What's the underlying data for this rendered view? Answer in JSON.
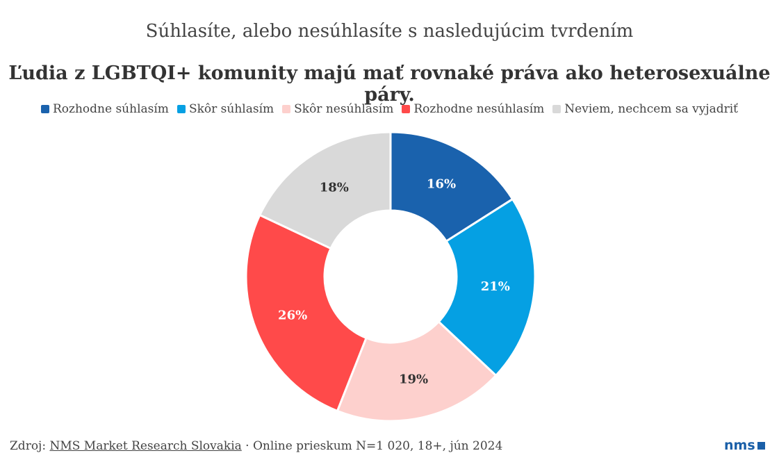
{
  "chart_data": {
    "type": "pie",
    "subtitle": "Súhlasíte, alebo nesúhlasíte s nasledujúcim tvrdením",
    "title": "Ľudia z LGBTQI+ komunity majú mať rovnaké práva ako heterosexuálne páry.",
    "legend_position": "top",
    "donut": true,
    "slices": [
      {
        "label": "Rozhodne súhlasím",
        "value": 16,
        "display": "16%",
        "color": "#1a62ad",
        "text_color": "#ffffff"
      },
      {
        "label": "Skôr súhlasím",
        "value": 21,
        "display": "21%",
        "color": "#05a0e3",
        "text_color": "#ffffff"
      },
      {
        "label": "Skôr nesúhlasím",
        "value": 19,
        "display": "19%",
        "color": "#fdd0cd",
        "text_color": "#333333"
      },
      {
        "label": "Rozhodne nesúhlasím",
        "value": 26,
        "display": "26%",
        "color": "#ff4a4a",
        "text_color": "#ffffff"
      },
      {
        "label": "Neviem, nechcem sa vyjadriť",
        "value": 18,
        "display": "18%",
        "color": "#d9d9d9",
        "text_color": "#333333"
      }
    ]
  },
  "footer": {
    "prefix": "Zdroj: ",
    "source": "NMS Market Research Slovakia",
    "details": " · Online prieskum N=1 020, 18+, jún 2024"
  },
  "logo": {
    "text": "nms"
  }
}
